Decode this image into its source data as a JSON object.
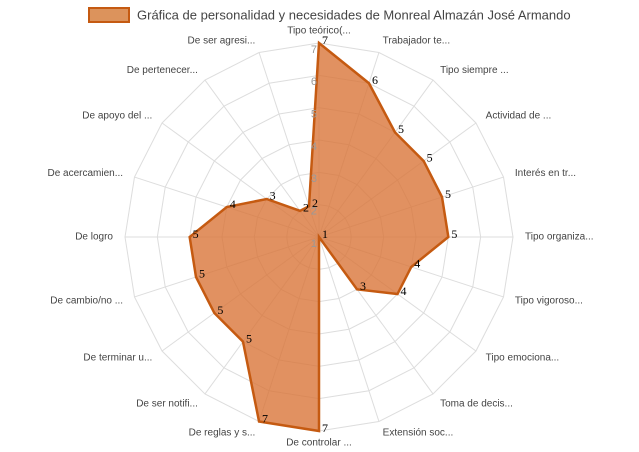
{
  "chart_data": {
    "type": "radar",
    "categories": [
      "Tipo teórico(...",
      "Trabajador te...",
      "Tipo siempre ...",
      "Actividad de ...",
      "Interés en tr...",
      "Tipo organiza...",
      "Tipo vigoroso...",
      "Tipo emociona...",
      "Toma de decis...",
      "Extensión soc...",
      "De controlar ...",
      "De reglas y s...",
      "De ser notifi...",
      "De terminar u...",
      "De cambio/no ...",
      "De logro",
      "De acercamien...",
      "De apoyo del ...",
      "De pertenecer...",
      "De ser agresi..."
    ],
    "series": [
      {
        "name": "Gráfica de personalidad y necesidades de Monreal Almazán José Armando",
        "color": "#c55a11",
        "values": [
          7,
          6,
          5,
          5,
          5,
          5,
          4,
          4,
          3,
          1,
          7,
          7,
          5,
          5,
          5,
          5,
          4,
          3,
          2,
          2
        ]
      }
    ],
    "rlim": [
      1,
      7
    ],
    "rticks": [
      1,
      2,
      3,
      4,
      5,
      6,
      7
    ],
    "grid": true,
    "legend": "top"
  }
}
